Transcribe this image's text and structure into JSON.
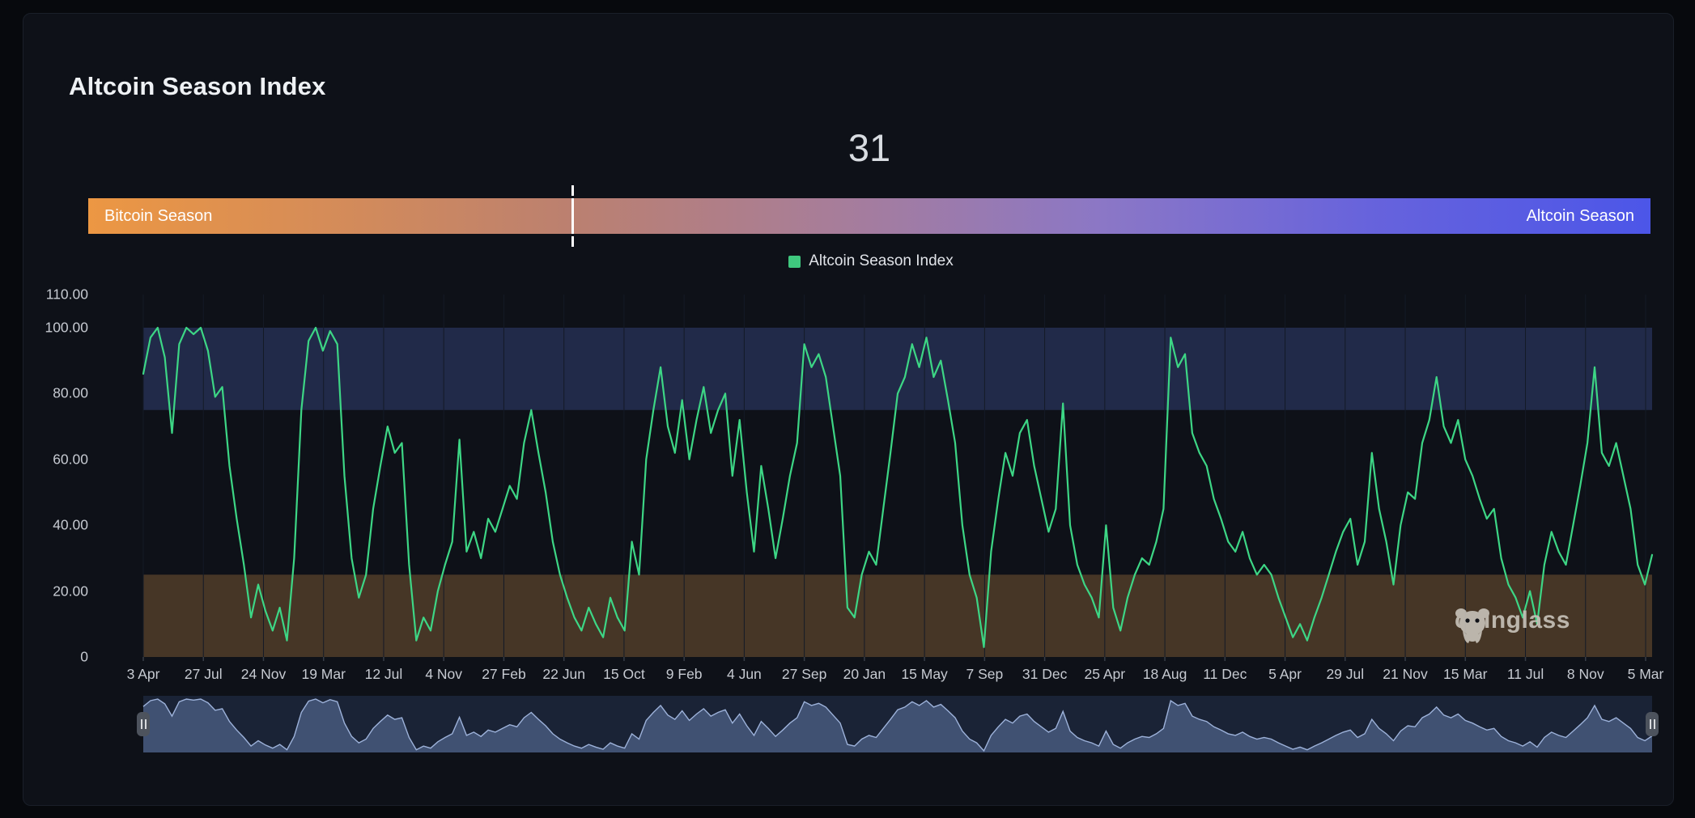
{
  "panel": {
    "title": "Altcoin Season Index"
  },
  "index": {
    "value": 31,
    "left_label": "Bitcoin Season",
    "right_label": "Altcoin Season",
    "bar_gradient": [
      "#ec9743",
      "#4c56e8"
    ]
  },
  "legend": {
    "label": "Altcoin Season Index",
    "swatch_color": "#3fc87e"
  },
  "watermark": {
    "text": "coinglass"
  },
  "colors": {
    "page_bg": "#07090d",
    "panel_bg": "#0e1118",
    "line": "#3dd685",
    "band_high": "#212a49",
    "band_low": "#463626",
    "axis_text": "#c6cad1",
    "grid": "#141a26",
    "nav_bg": "#1a2336",
    "nav_fill": "#455679",
    "nav_line": "#9db2da",
    "marker": "#ffffff"
  },
  "chart_data": {
    "type": "line",
    "title": "Altcoin Season Index",
    "legend_entries": [
      "Altcoin Season Index"
    ],
    "legend_position": "top-center",
    "grid": "faint-vertical-at-ticks",
    "ylim": [
      0,
      110
    ],
    "ytick_labels": [
      "110.00",
      "100.00",
      "80.00",
      "60.00",
      "40.00",
      "20.00",
      "0"
    ],
    "ytick_values": [
      110,
      100,
      80,
      60,
      40,
      20,
      0
    ],
    "x_tick_labels": [
      "3 Apr",
      "27 Jul",
      "24 Nov",
      "19 Mar",
      "12 Jul",
      "4 Nov",
      "27 Feb",
      "22 Jun",
      "15 Oct",
      "9 Feb",
      "4 Jun",
      "27 Sep",
      "20 Jan",
      "15 May",
      "7 Sep",
      "31 Dec",
      "25 Apr",
      "18 Aug",
      "11 Dec",
      "5 Apr",
      "29 Jul",
      "21 Nov",
      "15 Mar",
      "11 Jul",
      "8 Nov",
      "5 Mar"
    ],
    "bands": [
      {
        "from": 75,
        "to": 100,
        "color": "#212a49",
        "meaning": "altcoin season zone"
      },
      {
        "from": 0,
        "to": 25,
        "color": "#463626",
        "meaning": "bitcoin season zone"
      }
    ],
    "current_value": 31,
    "values": [
      86,
      97,
      100,
      91,
      68,
      95,
      100,
      98,
      100,
      93,
      79,
      82,
      58,
      42,
      28,
      12,
      22,
      14,
      8,
      15,
      5,
      30,
      75,
      96,
      100,
      93,
      99,
      95,
      55,
      30,
      18,
      25,
      45,
      58,
      70,
      62,
      65,
      28,
      5,
      12,
      8,
      20,
      28,
      35,
      66,
      32,
      38,
      30,
      42,
      38,
      45,
      52,
      48,
      65,
      75,
      62,
      50,
      35,
      25,
      18,
      12,
      8,
      15,
      10,
      6,
      18,
      12,
      8,
      35,
      25,
      60,
      75,
      88,
      70,
      62,
      78,
      60,
      72,
      82,
      68,
      75,
      80,
      55,
      72,
      50,
      32,
      58,
      45,
      30,
      42,
      55,
      65,
      95,
      88,
      92,
      85,
      70,
      55,
      15,
      12,
      25,
      32,
      28,
      45,
      62,
      80,
      85,
      95,
      88,
      97,
      85,
      90,
      78,
      65,
      40,
      25,
      18,
      3,
      32,
      48,
      62,
      55,
      68,
      72,
      58,
      48,
      38,
      45,
      77,
      40,
      28,
      22,
      18,
      12,
      40,
      15,
      8,
      18,
      25,
      30,
      28,
      35,
      45,
      97,
      88,
      92,
      68,
      62,
      58,
      48,
      42,
      35,
      32,
      38,
      30,
      25,
      28,
      25,
      18,
      12,
      6,
      10,
      5,
      12,
      18,
      25,
      32,
      38,
      42,
      28,
      35,
      62,
      45,
      35,
      22,
      40,
      50,
      48,
      65,
      72,
      85,
      70,
      65,
      72,
      60,
      55,
      48,
      42,
      45,
      30,
      22,
      18,
      12,
      20,
      10,
      28,
      38,
      32,
      28,
      40,
      52,
      65,
      88,
      62,
      58,
      65,
      55,
      45,
      28,
      22,
      31
    ]
  },
  "navigator": {
    "series": "same-as-chart",
    "selected_range": "full"
  }
}
